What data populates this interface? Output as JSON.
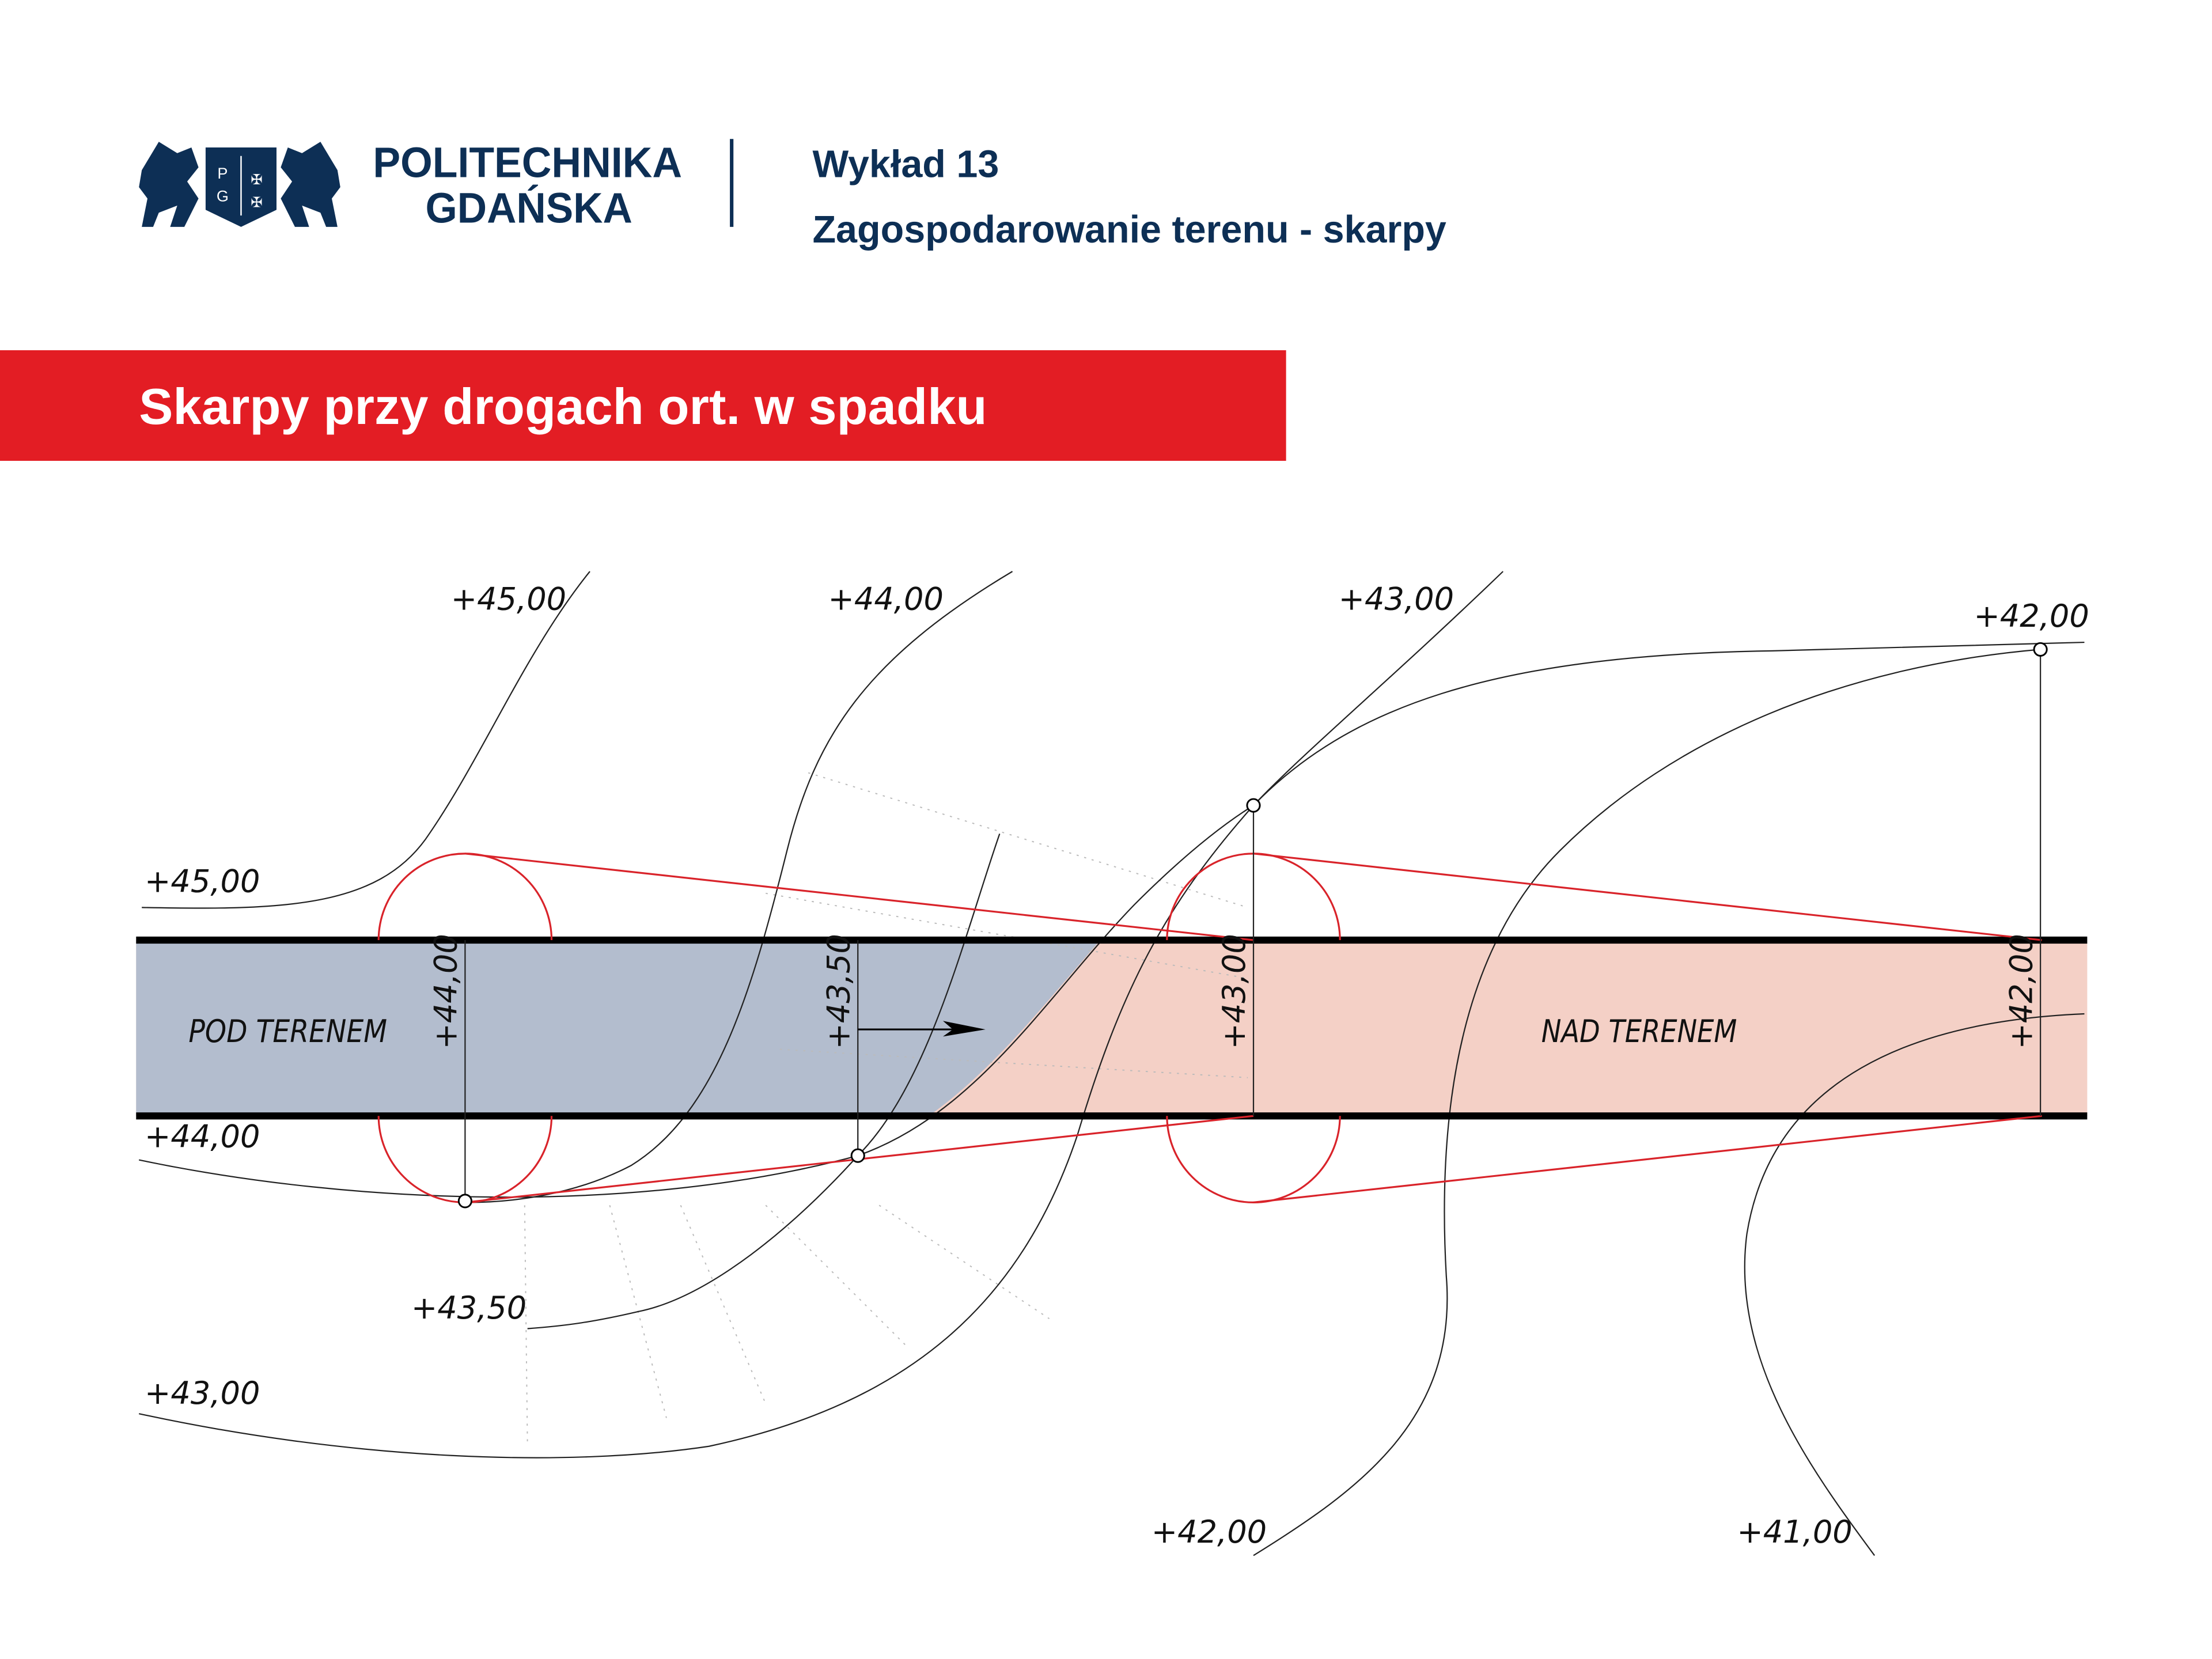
{
  "header": {
    "university_line1": "POLITECHNIKA",
    "university_line2": "GDAŃSKA",
    "logo_letters": [
      "P",
      "G"
    ],
    "lecture": "Wykład 13",
    "topic": "Zagospodarowanie terenu - skarpy"
  },
  "title_bar": {
    "title": "Skarpy przy drogach ort. w spadku",
    "color": "#e31d24"
  },
  "diagram": {
    "colors": {
      "cut": "#b3bdce",
      "fill": "#f4d0c6",
      "construction": "#d9232a",
      "brand": "#0d2f55"
    },
    "contour_labels": {
      "c45_top": "+45,00",
      "c44_top": "+44,00",
      "c43_top": "+43,00",
      "c42_top": "+42,00",
      "c45_left": "+45,00",
      "c44_left": "+44,00",
      "c4350": "+43,50",
      "c43_left": "+43,00",
      "c42_bottom": "+42,00",
      "c41_bottom": "+41,00"
    },
    "road_elevations": [
      "+44,00",
      "+43,50",
      "+43,00",
      "+42,00"
    ],
    "zone_cut": "POD TERENEM",
    "zone_fill": "NAD TERENEM"
  }
}
